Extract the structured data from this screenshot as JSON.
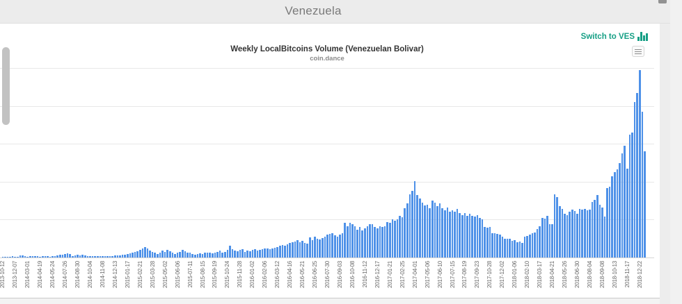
{
  "page": {
    "header_title": "Venezuela"
  },
  "toolbar": {
    "switch_link_label": "Switch to VES"
  },
  "chart": {
    "title": "Weekly LocalBitcoins Volume (Venezuelan Bolivar)",
    "subtitle": "coin.dance"
  },
  "colors": {
    "bar_blue": "#4e91e8",
    "accent_teal": "#169f85",
    "header_bg": "#ececec",
    "gridline": "#e8e8e8",
    "axis_line": "#d6d6d6",
    "tick_text": "#666666",
    "title_text": "#333333"
  },
  "chart_data": {
    "type": "bar",
    "title": "Weekly LocalBitcoins Volume (Venezuelan Bolivar)",
    "subtitle": "coin.dance",
    "xlabel": "",
    "ylabel": "",
    "y_axis_labels_visible": false,
    "value_units": "relative bar height, percent of plot height (y axis unlabeled in source)",
    "grid": "5 horizontal intervals, gridlines on",
    "legend": "none",
    "num_bars": 258,
    "tick_every_n_bars": 5,
    "x_tick_labels": [
      "2013-10-12",
      "2013-12-07",
      "2014-03-01",
      "2014-04-19",
      "2014-05-24",
      "2014-07-26",
      "2014-08-30",
      "2014-10-04",
      "2014-11-08",
      "2014-12-13",
      "2015-01-17",
      "2015-02-21",
      "2015-03-28",
      "2015-05-02",
      "2015-06-06",
      "2015-07-11",
      "2015-08-15",
      "2015-09-19",
      "2015-10-24",
      "2015-11-28",
      "2016-01-02",
      "2016-02-06",
      "2016-03-12",
      "2016-04-16",
      "2016-05-21",
      "2016-06-25",
      "2016-07-30",
      "2016-09-03",
      "2016-10-08",
      "2016-11-12",
      "2016-12-17",
      "2017-01-21",
      "2017-02-25",
      "2017-04-01",
      "2017-05-06",
      "2017-06-10",
      "2017-07-15",
      "2017-08-19",
      "2017-09-23",
      "2017-10-28",
      "2017-12-02",
      "2018-01-06",
      "2018-02-10",
      "2018-03-17",
      "2018-04-21",
      "2018-05-26",
      "2018-06-30",
      "2018-08-04",
      "2018-09-08",
      "2018-10-13",
      "2018-11-17",
      "2018-12-22"
    ],
    "values": [
      0.4,
      0.4,
      0.5,
      0.4,
      0.6,
      0.5,
      0.4,
      1.0,
      1.2,
      0.6,
      0.5,
      0.6,
      0.8,
      0.7,
      0.6,
      0.5,
      0.6,
      0.7,
      0.6,
      0.5,
      0.6,
      0.8,
      1.0,
      1.6,
      1.3,
      2.0,
      2.1,
      1.8,
      0.9,
      1.0,
      1.3,
      1.1,
      1.4,
      1.2,
      0.8,
      0.7,
      0.6,
      0.7,
      0.6,
      0.8,
      0.7,
      0.9,
      0.8,
      0.7,
      0.9,
      1.0,
      1.2,
      1.1,
      1.3,
      1.5,
      1.8,
      2.2,
      2.6,
      3.0,
      3.4,
      3.9,
      4.6,
      5.5,
      4.6,
      3.7,
      3.1,
      2.7,
      1.8,
      2.4,
      3.7,
      3.1,
      3.9,
      3.4,
      2.4,
      1.8,
      2.4,
      3.1,
      3.9,
      3.4,
      2.7,
      2.4,
      1.8,
      1.5,
      1.8,
      2.2,
      1.8,
      2.4,
      2.7,
      2.4,
      2.2,
      2.7,
      3.1,
      3.7,
      2.7,
      3.1,
      3.9,
      6.1,
      4.3,
      3.7,
      3.4,
      3.9,
      4.3,
      3.1,
      3.7,
      3.4,
      3.9,
      4.3,
      3.7,
      3.9,
      4.3,
      4.6,
      4.9,
      4.3,
      4.6,
      5.1,
      5.5,
      6.1,
      6.7,
      6.1,
      7.1,
      7.6,
      7.9,
      8.5,
      9.3,
      8.2,
      8.8,
      7.8,
      7.5,
      10.5,
      9.2,
      11.0,
      10.0,
      9.5,
      10.4,
      11.0,
      12.0,
      12.6,
      13.0,
      11.7,
      11.0,
      12.0,
      13.0,
      18.3,
      16.5,
      18.3,
      17.7,
      16.5,
      14.6,
      16.0,
      14.3,
      15.3,
      16.5,
      17.7,
      17.7,
      16.0,
      15.3,
      16.5,
      16.0,
      16.4,
      18.6,
      18.3,
      20.0,
      19.5,
      20.0,
      22.0,
      21.3,
      26.0,
      28.5,
      33.5,
      35.0,
      40.3,
      33.0,
      31.0,
      29.0,
      27.5,
      28.0,
      26.0,
      30.0,
      29.0,
      27.0,
      28.5,
      26.0,
      25.0,
      26.5,
      24.0,
      25.0,
      24.0,
      25.5,
      23.5,
      22.5,
      23.5,
      22.0,
      23.0,
      22.0,
      21.5,
      22.5,
      21.0,
      20.0,
      16.0,
      15.8,
      16.0,
      13.0,
      13.0,
      12.5,
      12.0,
      11.0,
      10.0,
      10.0,
      10.0,
      8.8,
      9.0,
      8.0,
      8.4,
      7.6,
      11.0,
      11.5,
      12.0,
      13.0,
      13.3,
      15.0,
      16.5,
      21.0,
      20.5,
      22.0,
      17.7,
      17.5,
      33.5,
      32.0,
      27.0,
      25.6,
      23.0,
      22.5,
      24.0,
      25.4,
      24.6,
      23.0,
      25.6,
      25.4,
      25.6,
      24.8,
      25.4,
      29.3,
      30.5,
      33.0,
      28.0,
      26.4,
      21.7,
      36.6,
      37.2,
      43.0,
      45.0,
      46.4,
      50.0,
      55.0,
      59.0,
      47.0,
      65.0,
      66.0,
      82.0,
      87.0,
      99.0,
      77.0,
      56.0
    ]
  }
}
